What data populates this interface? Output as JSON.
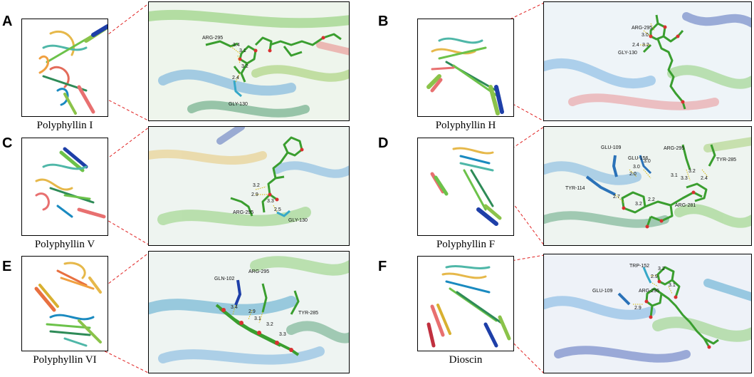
{
  "colors": {
    "connector": "#e02020",
    "ligand": "#3a9e2f",
    "helix_blue": "#1e3fa8",
    "residue_blue": "#2b72b8",
    "residue_cyan": "#36a8c8"
  },
  "panels": [
    {
      "letter": "A",
      "caption": "Polyphyllin I",
      "residues": [
        "ARG-295",
        "GLY-130"
      ],
      "distances": [
        "3.4",
        "3.1",
        "3.2",
        "2.4"
      ]
    },
    {
      "letter": "B",
      "caption": "Polyphyllin H",
      "residues": [
        "ARG-295",
        "GLY-130"
      ],
      "distances": [
        "3.0",
        "2.4",
        "3.2"
      ]
    },
    {
      "letter": "C",
      "caption": "Polyphyllin V",
      "residues": [
        "ARG-295",
        "GLY-130"
      ],
      "distances": [
        "3.2",
        "2.9",
        "3.3",
        "2.5"
      ]
    },
    {
      "letter": "D",
      "caption": "Polyphyllin F",
      "residues": [
        "GLU-109",
        "GLU-156",
        "ARG-295",
        "TYR-285",
        "TYR-114",
        "ARG-281"
      ],
      "distances": [
        "3.0",
        "3.0",
        "2.0",
        "3.2",
        "3.1",
        "3.3",
        "2.4",
        "2.7",
        "3.2",
        "2.2"
      ]
    },
    {
      "letter": "E",
      "caption": "Polyphyllin VI",
      "residues": [
        "GLN-102",
        "ARG-295",
        "TYR-285"
      ],
      "distances": [
        "3.4",
        "2.9",
        "3.1",
        "3.2",
        "3.3"
      ]
    },
    {
      "letter": "F",
      "caption": "Dioscin",
      "residues": [
        "TRP-152",
        "GLU-109",
        "ARG-295"
      ],
      "distances": [
        "3.2",
        "2.9",
        "3.1",
        "2.9"
      ]
    }
  ]
}
